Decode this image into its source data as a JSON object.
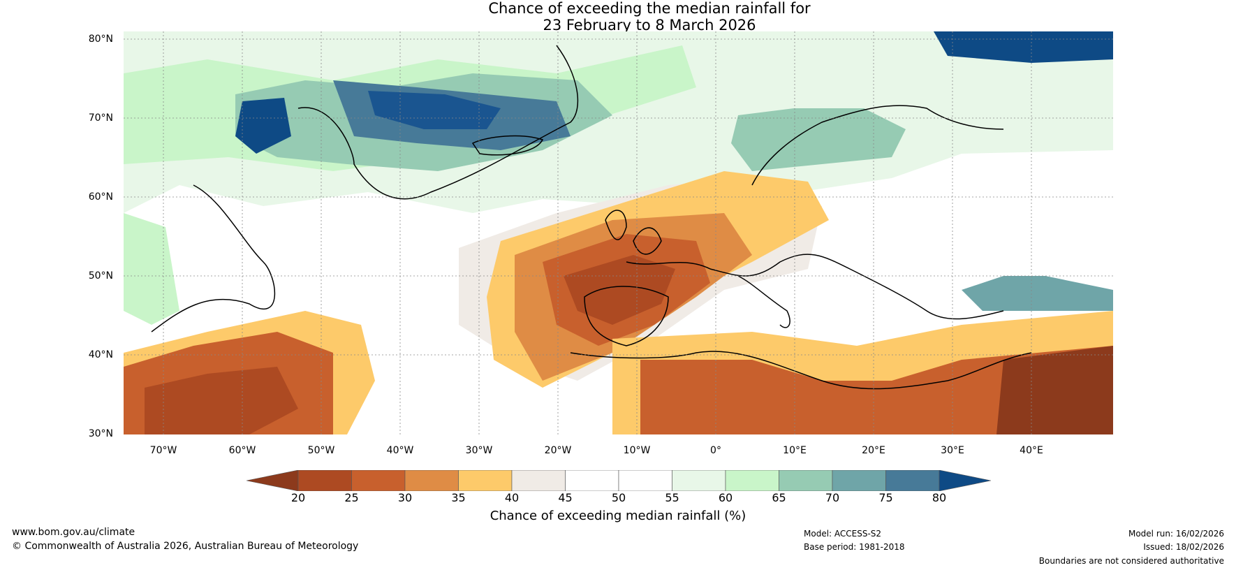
{
  "title": {
    "line1": "Chance of exceeding the median rainfall for",
    "line2": "23 February to 8 March 2026"
  },
  "map": {
    "lat_labels": [
      "80°N",
      "70°N",
      "60°N",
      "50°N",
      "40°N",
      "30°N"
    ],
    "lon_labels": [
      "70°W",
      "60°W",
      "50°W",
      "40°W",
      "30°W",
      "20°W",
      "10°W",
      "0°",
      "10°E",
      "20°E",
      "30°E",
      "40°E"
    ],
    "region_names": [
      "north-atlantic-europe"
    ]
  },
  "colorbar": {
    "ticks": [
      "20",
      "25",
      "30",
      "35",
      "40",
      "45",
      "50",
      "55",
      "60",
      "65",
      "70",
      "75",
      "80"
    ],
    "colors": [
      "#8c3a1c",
      "#ad4a22",
      "#c8602d",
      "#df8c45",
      "#fdca6a",
      "#f0ebe6",
      "#ffffff",
      "#ffffff",
      "#e8f7e8",
      "#c9f5c9",
      "#96cbb3",
      "#6fa5a8",
      "#477a98",
      "#0e4a85"
    ],
    "label": "Chance of exceeding median rainfall (%)"
  },
  "footer": {
    "website": "www.bom.gov.au/climate",
    "copyright": "© Commonwealth of Australia 2026, Australian Bureau of Meteorology",
    "model": "Model: ACCESS-S2",
    "base_period": "Base period: 1981-2018",
    "model_run": "Model run: 16/02/2026",
    "issued": "Issued: 18/02/2026",
    "disclaimer": "Boundaries are not considered authoritative"
  }
}
